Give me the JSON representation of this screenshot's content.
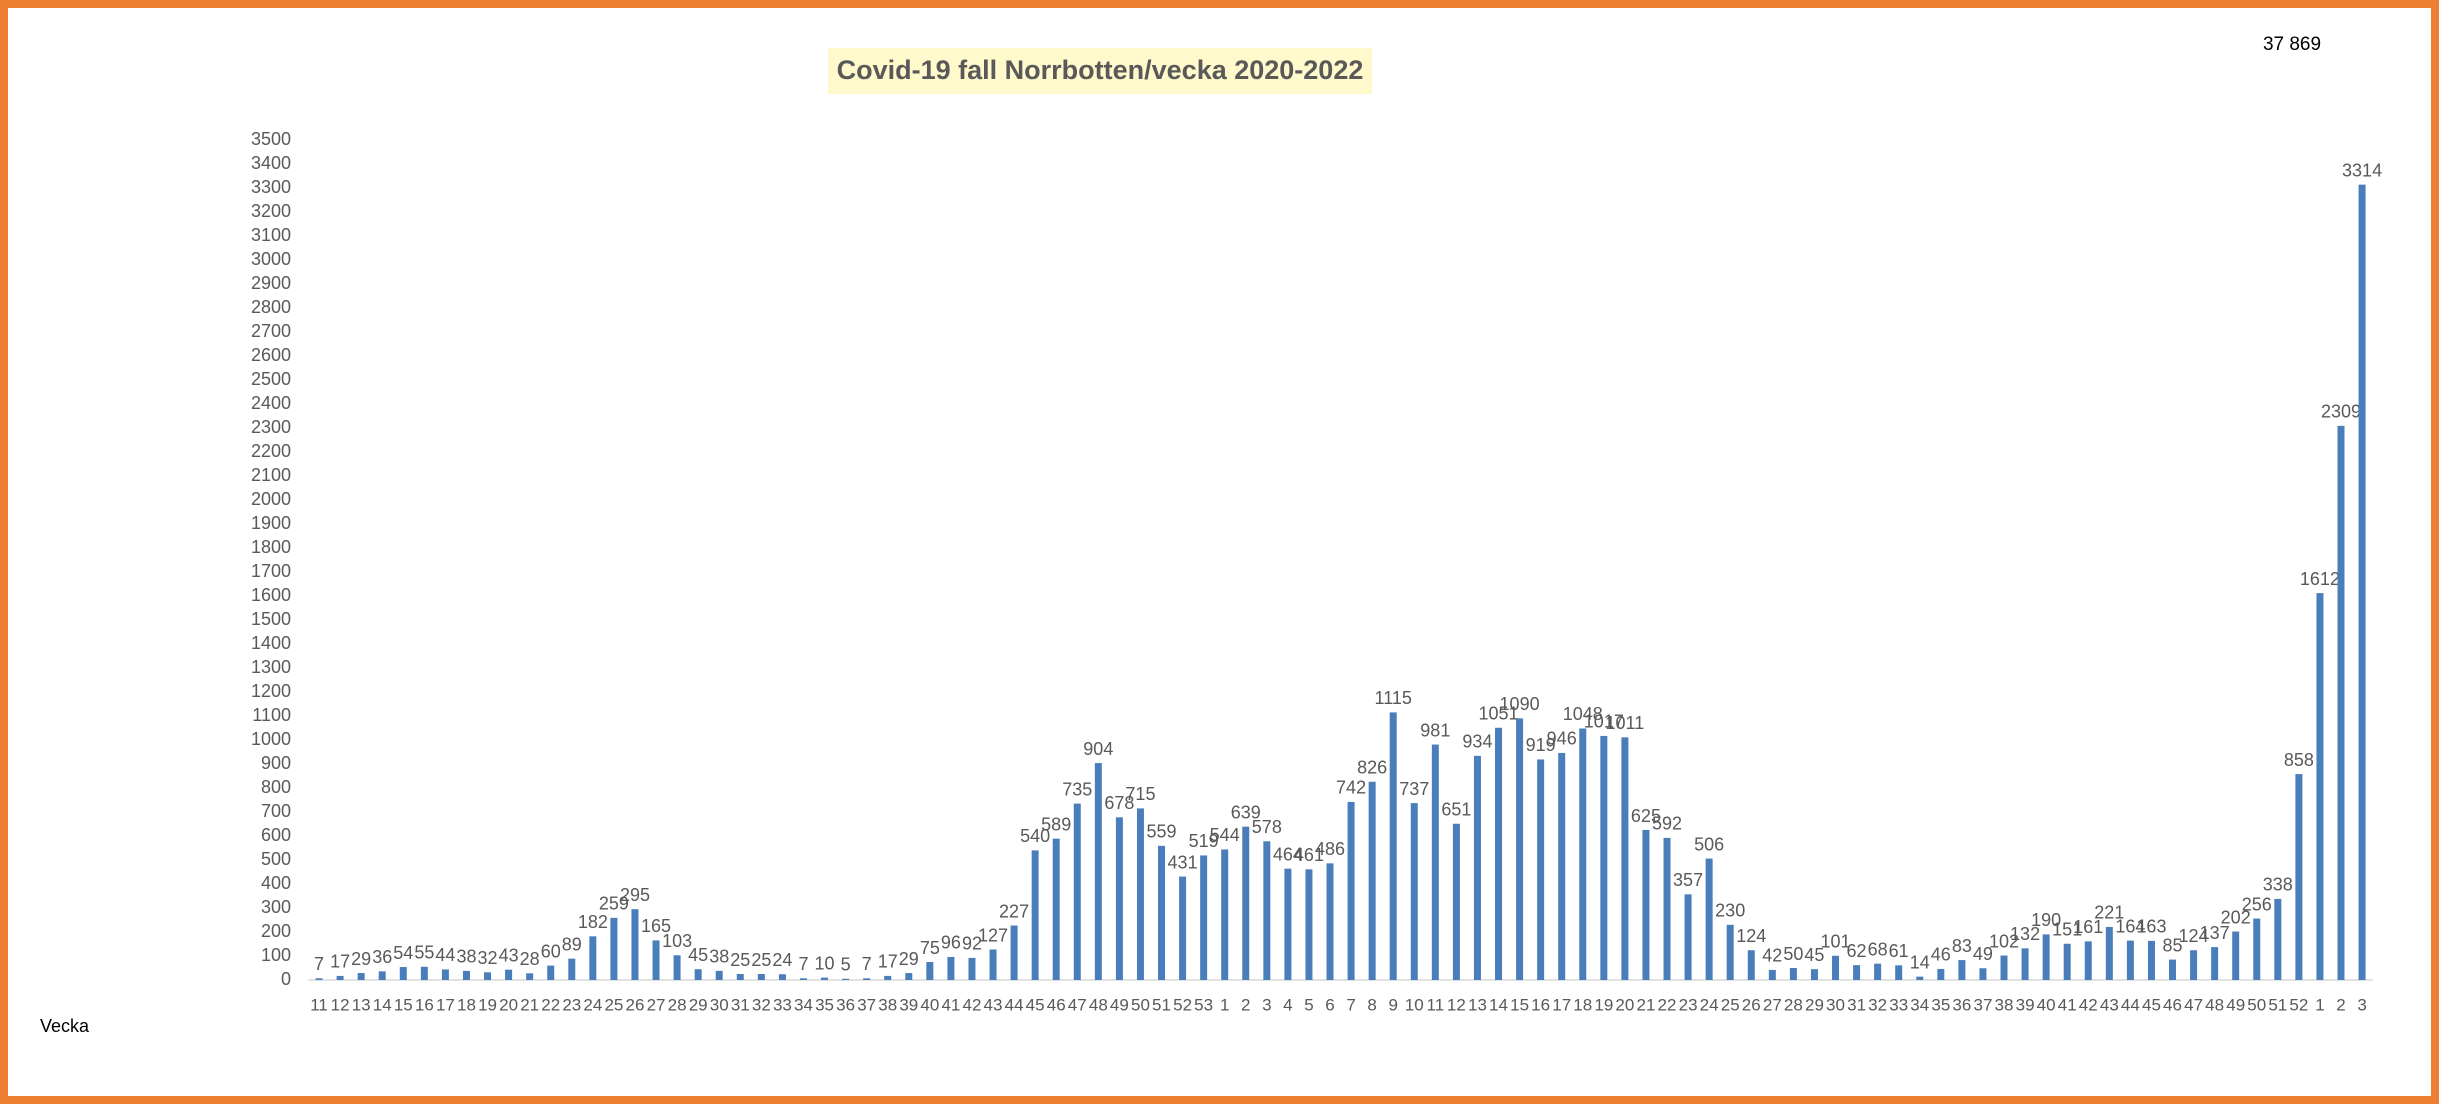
{
  "chart_data": {
    "type": "bar",
    "title": "Covid-19 fall Norrbotten/vecka 2020-2022",
    "total": "37 869",
    "x_label": "Vecka",
    "categories": [
      "11",
      "12",
      "13",
      "14",
      "15",
      "16",
      "17",
      "18",
      "19",
      "20",
      "21",
      "22",
      "23",
      "24",
      "25",
      "26",
      "27",
      "28",
      "29",
      "30",
      "31",
      "32",
      "33",
      "34",
      "35",
      "36",
      "37",
      "38",
      "39",
      "40",
      "41",
      "42",
      "43",
      "44",
      "45",
      "46",
      "47",
      "48",
      "49",
      "50",
      "51",
      "52",
      "53",
      "1",
      "2",
      "3",
      "4",
      "5",
      "6",
      "7",
      "8",
      "9",
      "10",
      "11",
      "12",
      "13",
      "14",
      "15",
      "16",
      "17",
      "18",
      "19",
      "20",
      "21",
      "22",
      "23",
      "24",
      "25",
      "26",
      "27",
      "28",
      "29",
      "30",
      "31",
      "32",
      "33",
      "34",
      "35",
      "36",
      "37",
      "38",
      "39",
      "40",
      "41",
      "42",
      "43",
      "44",
      "45",
      "46",
      "47",
      "48",
      "49",
      "50",
      "51",
      "52",
      "1",
      "2",
      "3"
    ],
    "values": [
      7,
      17,
      29,
      36,
      54,
      55,
      44,
      38,
      32,
      43,
      28,
      60,
      89,
      182,
      259,
      295,
      165,
      103,
      45,
      38,
      25,
      25,
      24,
      7,
      10,
      5,
      7,
      17,
      29,
      75,
      96,
      92,
      127,
      227,
      540,
      589,
      735,
      904,
      678,
      715,
      559,
      431,
      519,
      544,
      639,
      578,
      464,
      461,
      486,
      742,
      826,
      1115,
      737,
      981,
      651,
      934,
      1051,
      1090,
      919,
      946,
      1048,
      1017,
      1011,
      625,
      592,
      357,
      506,
      230,
      124,
      42,
      50,
      45,
      101,
      62,
      68,
      61,
      14,
      46,
      83,
      49,
      102,
      132,
      190,
      151,
      161,
      221,
      164,
      163,
      85,
      124,
      137,
      202,
      256,
      338,
      858,
      1612,
      2309,
      3314
    ],
    "color": "#4a7ebb",
    "ylim": [
      0,
      3500
    ],
    "yticks": [
      0,
      100,
      200,
      300,
      400,
      500,
      600,
      700,
      800,
      900,
      1000,
      1100,
      1200,
      1300,
      1400,
      1500,
      1600,
      1700,
      1800,
      1900,
      2000,
      2100,
      2200,
      2300,
      2400,
      2500,
      2600,
      2700,
      2800,
      2900,
      3000,
      3100,
      3200,
      3300,
      3400,
      3500
    ],
    "grid": false
  }
}
